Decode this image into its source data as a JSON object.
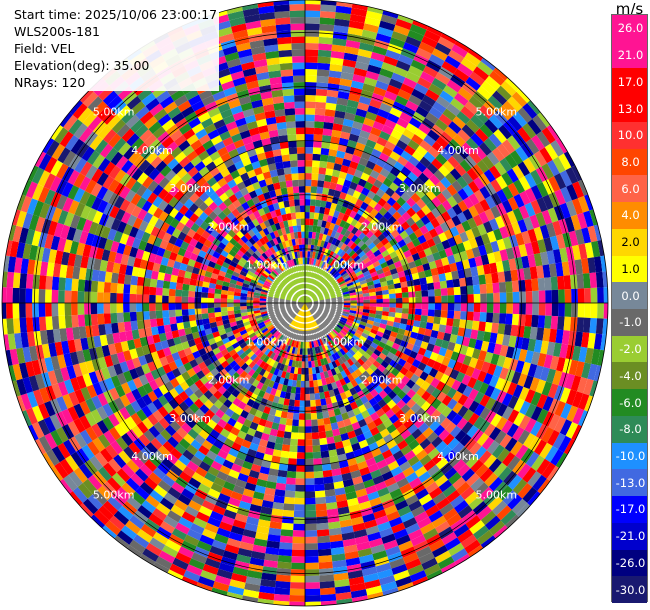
{
  "info": {
    "start_time": "Start time: 2025/10/06 23:00:17",
    "instrument": "WLS200s-181",
    "field": "Field: VEL",
    "elevation": "Elevation(deg): 35.00",
    "nrays": "NRays: 120"
  },
  "chart_data": {
    "type": "heatmap",
    "projection": "polar-ppi",
    "field": "VEL",
    "units": "m/s",
    "range_rings_km": [
      1.0,
      2.0,
      3.0,
      4.0,
      5.0
    ],
    "ring_labels": [
      "1.00km",
      "2.00km",
      "3.00km",
      "4.00km",
      "5.00km"
    ],
    "max_range_km": 5.6,
    "nrays": 120,
    "noise_free_range_km": 0.72,
    "near_field": {
      "north_half_color": "#9acd32",
      "south_fan_color": "#ffd700",
      "south_fan_azimuth_deg": [
        150,
        215
      ],
      "background_color": "#808080",
      "dot_color": "#ffffff"
    },
    "colorbar": {
      "tick_labels": [
        "26.0",
        "21.0",
        "17.0",
        "13.0",
        "10.0",
        "8.0",
        "6.0",
        "4.0",
        "2.0",
        "1.0",
        "0.0",
        "-1.0",
        "-2.0",
        "-4.0",
        "-6.0",
        "-8.0",
        "-10.0",
        "-13.0",
        "-17.0",
        "-21.0",
        "-26.0",
        "-30.0"
      ],
      "colors": [
        "#ff1493",
        "#ff1493",
        "#ff0000",
        "#ff0000",
        "#ff3030",
        "#ff4500",
        "#ff6347",
        "#ff8c00",
        "#ffd700",
        "#ffff00",
        "#778899",
        "#696969",
        "#9acd32",
        "#6b8e23",
        "#228b22",
        "#2e8b57",
        "#1e90ff",
        "#4169e1",
        "#0000ff",
        "#0000cd",
        "#000080",
        "#191970"
      ]
    }
  }
}
